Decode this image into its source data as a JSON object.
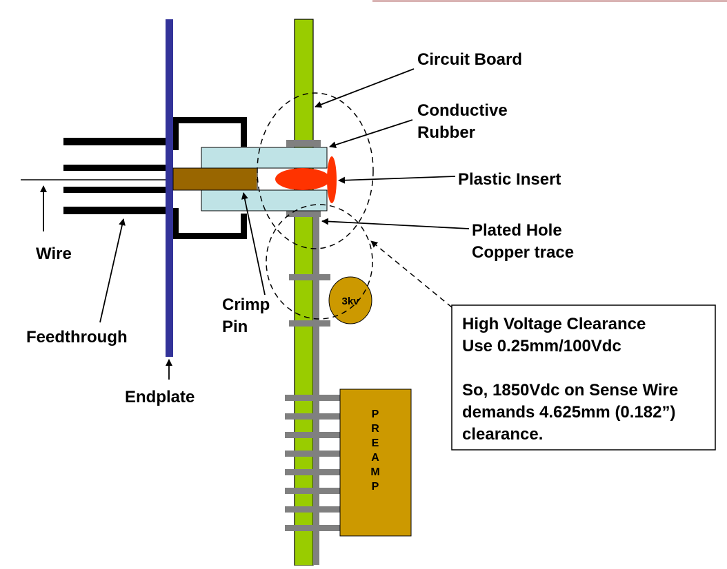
{
  "colors": {
    "endplate": "#333399",
    "board": "#99cc00",
    "trace": "#808080",
    "crimp_body": "#bfe3e6",
    "crimp_pin": "#996600",
    "insert": "#ff3300",
    "resistor": "#cc9900",
    "preamp": "#cc9900"
  },
  "labels": {
    "circuit_board": "Circuit Board",
    "conductive_rubber": [
      "Conductive",
      "Rubber"
    ],
    "plastic_insert": "Plastic Insert",
    "plated_hole": [
      "Plated Hole",
      "Copper trace"
    ],
    "wire": "Wire",
    "crimp_pin": [
      "Crimp",
      "Pin"
    ],
    "feedthrough": "Feedthrough",
    "endplate": "Endplate",
    "resistor": "3kv",
    "preamp": [
      "P",
      "R",
      "E",
      "A",
      "M",
      "P"
    ]
  },
  "note": {
    "lines": [
      "High Voltage Clearance",
      "Use 0.25mm/100Vdc",
      "",
      "So, 1850Vdc on Sense Wire",
      "demands 4.625mm (0.182”)",
      "clearance."
    ]
  }
}
